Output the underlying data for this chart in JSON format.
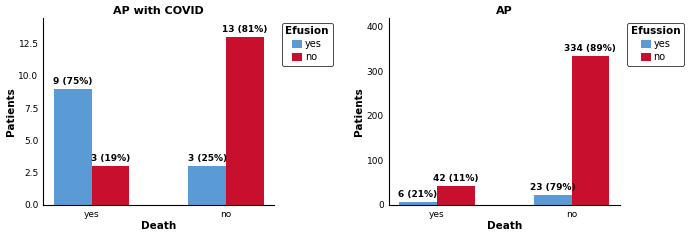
{
  "chart1": {
    "title": "AP with COVID",
    "xlabel": "Death",
    "ylabel": "Patients",
    "categories": [
      "yes",
      "no"
    ],
    "yes_values": [
      9,
      3
    ],
    "no_values": [
      3,
      13
    ],
    "yes_labels": [
      "9 (75%)",
      "3 (25%)"
    ],
    "no_labels": [
      "3 (19%)",
      "13 (81%)"
    ],
    "ylim": [
      0,
      14.5
    ],
    "yticks": [
      0.0,
      2.5,
      5.0,
      7.5,
      10.0,
      12.5
    ],
    "ytick_labels": [
      "0.0",
      "2.5",
      "5.0",
      "7.5",
      "10.0",
      "12.5"
    ],
    "color_yes": "#5B9BD5",
    "color_no": "#C8102E",
    "legend_title": "Efusion"
  },
  "chart2": {
    "title": "AP",
    "xlabel": "Death",
    "ylabel": "Patients",
    "categories": [
      "yes",
      "no"
    ],
    "yes_values": [
      6,
      23
    ],
    "no_values": [
      42,
      334
    ],
    "yes_labels": [
      "6 (21%)",
      "23 (79%)"
    ],
    "no_labels": [
      "42 (11%)",
      "334 (89%)"
    ],
    "ylim": [
      0,
      420
    ],
    "yticks": [
      0,
      100,
      200,
      300,
      400
    ],
    "ytick_labels": [
      "0",
      "100",
      "200",
      "300",
      "400"
    ],
    "color_yes": "#5B9BD5",
    "color_no": "#C8102E",
    "legend_title": "Efussion"
  },
  "bar_width": 0.28,
  "title_fontsize": 8,
  "axis_label_fontsize": 7.5,
  "tick_fontsize": 6.5,
  "legend_fontsize": 7,
  "legend_title_fontsize": 7.5,
  "annotation_fontsize": 6.5
}
